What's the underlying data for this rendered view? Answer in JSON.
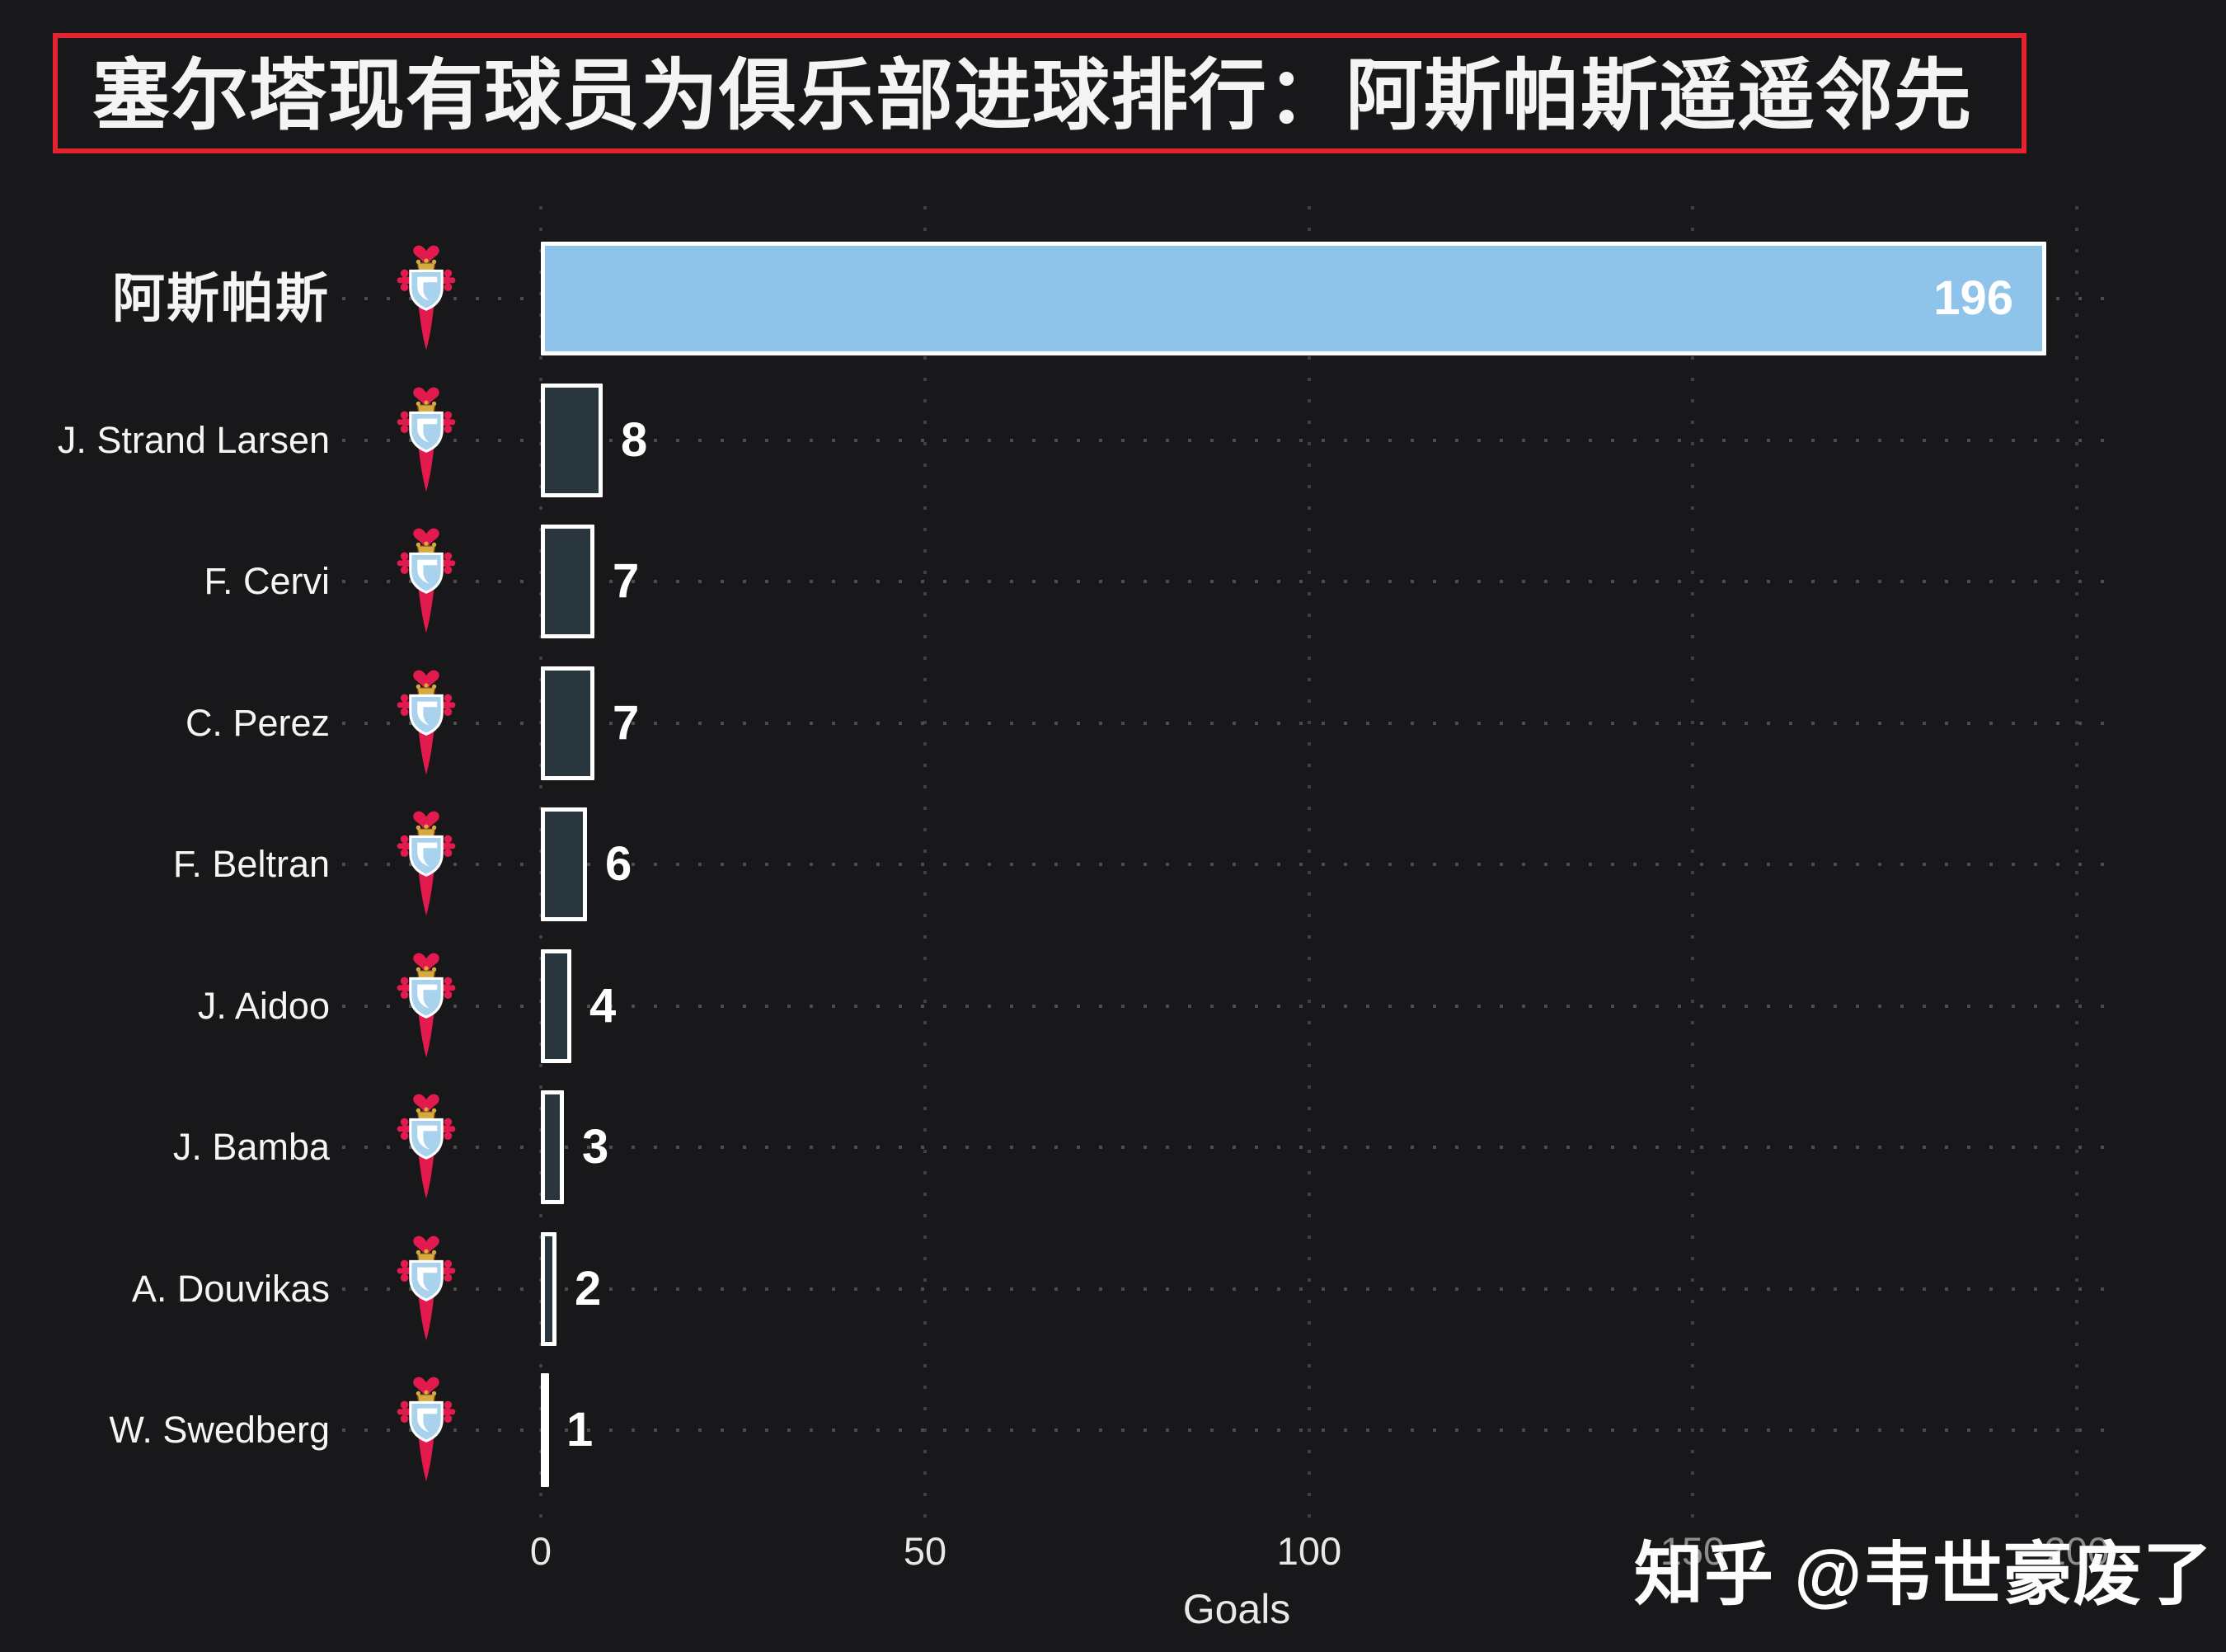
{
  "page": {
    "background": "#18181a"
  },
  "title": {
    "text": "塞尔塔现有球员为俱乐部进球排行：阿斯帕斯遥遥邻先",
    "border_color": "#e32330"
  },
  "chart_data": {
    "type": "bar",
    "orientation": "horizontal",
    "title": "塞尔塔现有球员为俱乐部进球排行：阿斯帕斯遥遥邻先",
    "categories": [
      "阿斯帕斯",
      "J. Strand Larsen",
      "F. Cervi",
      "C. Perez",
      "F. Beltran",
      "J. Aidoo",
      "J. Bamba",
      "A. Douvikas",
      "W. Swedberg"
    ],
    "values": [
      196,
      8,
      7,
      7,
      6,
      4,
      3,
      2,
      1
    ],
    "xlabel": "Goals",
    "xticks": [
      0,
      50,
      100,
      150,
      200
    ],
    "xlim": [
      0,
      200
    ],
    "grid": "dotted",
    "legend": "none",
    "highlight_bar_color": "#8ec3ea",
    "default_bar_color": "#2a363d",
    "bar_border_color": "#ffffff",
    "value_label_color": "#ffffff",
    "row_icon": "celta-vigo-crest"
  },
  "axis": {
    "tick_labels": [
      "0",
      "50",
      "100",
      "150",
      "200"
    ],
    "xlabel": "Goals"
  },
  "watermark": {
    "text": "知乎 @韦世豪废了"
  }
}
